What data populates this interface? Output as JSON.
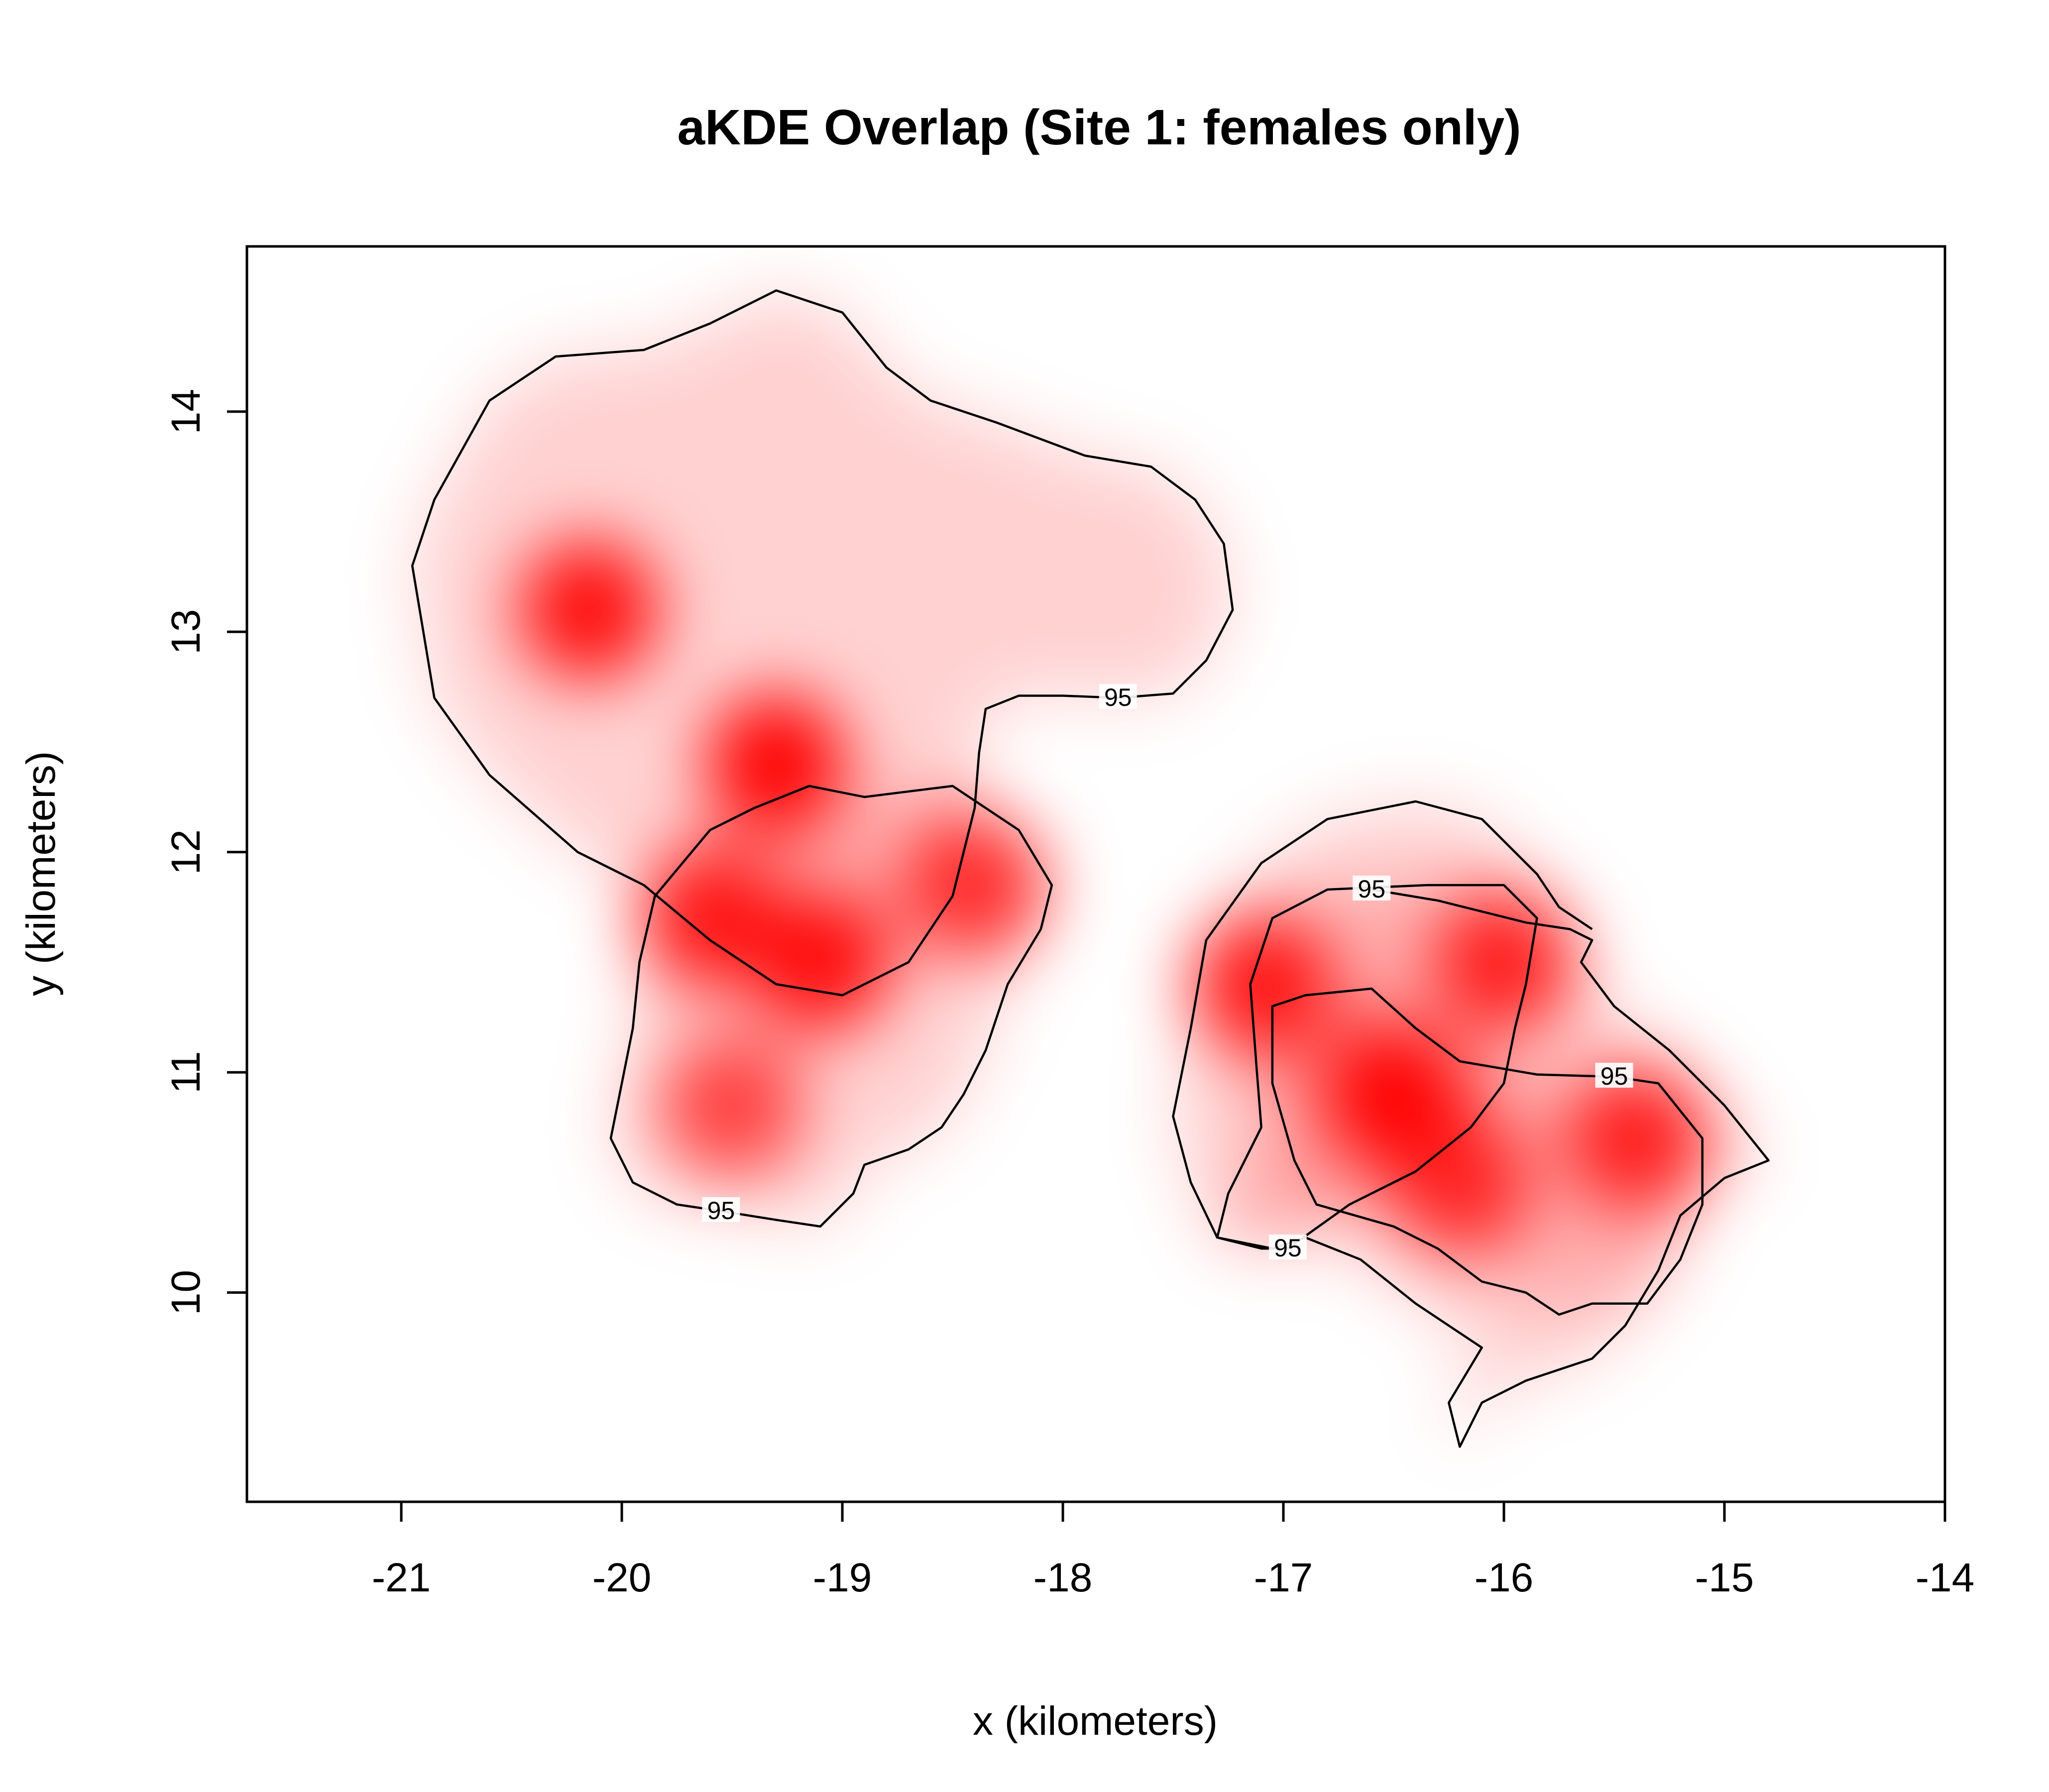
{
  "chart_data": {
    "type": "heatmap",
    "title": "aKDE Overlap (Site 1: females only)",
    "xlabel": "x (kilometers)",
    "ylabel": "y (kilometers)",
    "xlim": [
      -21.7,
      -14.0
    ],
    "ylim": [
      9.05,
      14.75
    ],
    "x_ticks": [
      -21,
      -20,
      -19,
      -18,
      -17,
      -16,
      -15,
      -14
    ],
    "y_ticks": [
      10,
      11,
      12,
      13,
      14
    ],
    "x_tick_labels": [
      "-21",
      "-20",
      "-19",
      "-18",
      "-17",
      "-16",
      "-15",
      "-14"
    ],
    "y_tick_labels": [
      "10",
      "11",
      "12",
      "13",
      "14"
    ],
    "grid": false,
    "legend": "none",
    "colormap": [
      "#ffffff",
      "#ff0000"
    ],
    "density_peaks": [
      {
        "x": -20.15,
        "y": 13.1,
        "intensity": 0.95
      },
      {
        "x": -19.3,
        "y": 12.4,
        "intensity": 1.0
      },
      {
        "x": -19.6,
        "y": 11.7,
        "intensity": 0.9
      },
      {
        "x": -19.1,
        "y": 11.5,
        "intensity": 0.95
      },
      {
        "x": -18.4,
        "y": 11.85,
        "intensity": 0.8
      },
      {
        "x": -19.5,
        "y": 10.85,
        "intensity": 0.7
      },
      {
        "x": -17.1,
        "y": 11.4,
        "intensity": 0.9
      },
      {
        "x": -16.5,
        "y": 10.9,
        "intensity": 1.0
      },
      {
        "x": -16.0,
        "y": 11.5,
        "intensity": 0.85
      },
      {
        "x": -15.4,
        "y": 10.7,
        "intensity": 0.85
      },
      {
        "x": -16.2,
        "y": 10.5,
        "intensity": 0.8
      }
    ],
    "contours": [
      {
        "level": "95",
        "label_at": [
          -17.75,
          12.7
        ],
        "points": [
          [
            -18.0,
            12.71
          ],
          [
            -17.75,
            12.7
          ],
          [
            -17.5,
            12.72
          ],
          [
            -17.35,
            12.87
          ],
          [
            -17.23,
            13.1
          ],
          [
            -17.27,
            13.4
          ],
          [
            -17.4,
            13.6
          ],
          [
            -17.6,
            13.75
          ],
          [
            -17.9,
            13.8
          ],
          [
            -18.3,
            13.95
          ],
          [
            -18.6,
            14.05
          ],
          [
            -18.8,
            14.2
          ],
          [
            -19.0,
            14.45
          ],
          [
            -19.3,
            14.55
          ],
          [
            -19.6,
            14.4
          ],
          [
            -19.9,
            14.28
          ],
          [
            -20.3,
            14.25
          ],
          [
            -20.6,
            14.05
          ],
          [
            -20.85,
            13.6
          ],
          [
            -20.95,
            13.3
          ],
          [
            -20.9,
            13.0
          ],
          [
            -20.85,
            12.7
          ],
          [
            -20.6,
            12.35
          ],
          [
            -20.2,
            12.0
          ],
          [
            -19.9,
            11.85
          ],
          [
            -19.6,
            11.6
          ],
          [
            -19.3,
            11.4
          ],
          [
            -19.0,
            11.35
          ],
          [
            -18.7,
            11.5
          ],
          [
            -18.5,
            11.8
          ],
          [
            -18.4,
            12.2
          ],
          [
            -18.38,
            12.45
          ],
          [
            -18.35,
            12.65
          ],
          [
            -18.2,
            12.71
          ],
          [
            -18.0,
            12.71
          ]
        ]
      },
      {
        "level": "95",
        "label_at": [
          -19.55,
          10.37
        ],
        "points": [
          [
            -19.55,
            10.37
          ],
          [
            -19.3,
            10.33
          ],
          [
            -19.1,
            10.3
          ],
          [
            -18.95,
            10.45
          ],
          [
            -18.9,
            10.58
          ],
          [
            -18.7,
            10.65
          ],
          [
            -18.55,
            10.75
          ],
          [
            -18.45,
            10.9
          ],
          [
            -18.35,
            11.1
          ],
          [
            -18.25,
            11.4
          ],
          [
            -18.1,
            11.65
          ],
          [
            -18.05,
            11.85
          ],
          [
            -18.2,
            12.1
          ],
          [
            -18.5,
            12.3
          ],
          [
            -18.9,
            12.25
          ],
          [
            -19.15,
            12.3
          ],
          [
            -19.4,
            12.2
          ],
          [
            -19.6,
            12.1
          ],
          [
            -19.85,
            11.8
          ],
          [
            -19.92,
            11.5
          ],
          [
            -19.95,
            11.2
          ],
          [
            -20.0,
            10.95
          ],
          [
            -20.05,
            10.7
          ],
          [
            -19.95,
            10.5
          ],
          [
            -19.75,
            10.4
          ],
          [
            -19.55,
            10.37
          ]
        ]
      },
      {
        "level": "95",
        "label_at": [
          -16.6,
          11.83
        ],
        "points": [
          [
            -16.6,
            11.83
          ],
          [
            -16.3,
            11.78
          ],
          [
            -15.9,
            11.68
          ],
          [
            -15.7,
            11.65
          ],
          [
            -15.6,
            11.6
          ],
          [
            -15.65,
            11.5
          ],
          [
            -15.5,
            11.3
          ],
          [
            -15.25,
            11.1
          ],
          [
            -15.0,
            10.85
          ],
          [
            -14.8,
            10.6
          ],
          [
            -15.0,
            10.52
          ],
          [
            -15.2,
            10.35
          ],
          [
            -15.3,
            10.1
          ],
          [
            -15.45,
            9.85
          ],
          [
            -15.6,
            9.7
          ],
          [
            -15.9,
            9.6
          ],
          [
            -16.1,
            9.5
          ],
          [
            -16.2,
            9.3
          ],
          [
            -16.25,
            9.5
          ],
          [
            -16.1,
            9.75
          ],
          [
            -16.4,
            9.95
          ],
          [
            -16.65,
            10.15
          ],
          [
            -16.9,
            10.25
          ],
          [
            -17.05,
            10.2
          ],
          [
            -17.3,
            10.25
          ],
          [
            -17.42,
            10.5
          ],
          [
            -17.5,
            10.8
          ],
          [
            -17.42,
            11.2
          ],
          [
            -17.35,
            11.6
          ],
          [
            -17.1,
            11.95
          ],
          [
            -16.8,
            12.15
          ],
          [
            -16.4,
            12.23
          ],
          [
            -16.1,
            12.15
          ],
          [
            -15.85,
            11.9
          ],
          [
            -15.75,
            11.75
          ],
          [
            -15.6,
            11.65
          ]
        ]
      },
      {
        "level": "95",
        "label_at": [
          -15.5,
          10.98
        ],
        "points": [
          [
            -15.5,
            10.98
          ],
          [
            -15.3,
            10.95
          ],
          [
            -15.1,
            10.7
          ],
          [
            -15.1,
            10.4
          ],
          [
            -15.2,
            10.15
          ],
          [
            -15.35,
            9.95
          ],
          [
            -15.6,
            9.95
          ],
          [
            -15.75,
            9.9
          ],
          [
            -15.9,
            10.0
          ],
          [
            -16.1,
            10.05
          ],
          [
            -16.3,
            10.2
          ],
          [
            -16.5,
            10.3
          ],
          [
            -16.85,
            10.4
          ],
          [
            -16.95,
            10.6
          ],
          [
            -17.05,
            10.95
          ],
          [
            -17.05,
            11.3
          ],
          [
            -16.9,
            11.35
          ],
          [
            -16.6,
            11.38
          ],
          [
            -16.4,
            11.2
          ],
          [
            -16.2,
            11.05
          ],
          [
            -15.85,
            10.99
          ],
          [
            -15.5,
            10.98
          ]
        ]
      },
      {
        "level": "95",
        "label_at": [
          -16.98,
          10.2
        ],
        "points": [
          [
            -16.98,
            10.2
          ],
          [
            -16.7,
            10.4
          ],
          [
            -16.4,
            10.55
          ],
          [
            -16.15,
            10.75
          ],
          [
            -16.0,
            10.95
          ],
          [
            -15.95,
            11.2
          ],
          [
            -15.9,
            11.4
          ],
          [
            -15.85,
            11.7
          ],
          [
            -16.0,
            11.85
          ],
          [
            -16.35,
            11.85
          ],
          [
            -16.8,
            11.83
          ],
          [
            -17.05,
            11.7
          ],
          [
            -17.15,
            11.4
          ],
          [
            -17.12,
            11.0
          ],
          [
            -17.1,
            10.75
          ],
          [
            -17.25,
            10.45
          ],
          [
            -17.3,
            10.25
          ],
          [
            -17.1,
            10.2
          ],
          [
            -16.98,
            10.2
          ]
        ]
      }
    ]
  }
}
